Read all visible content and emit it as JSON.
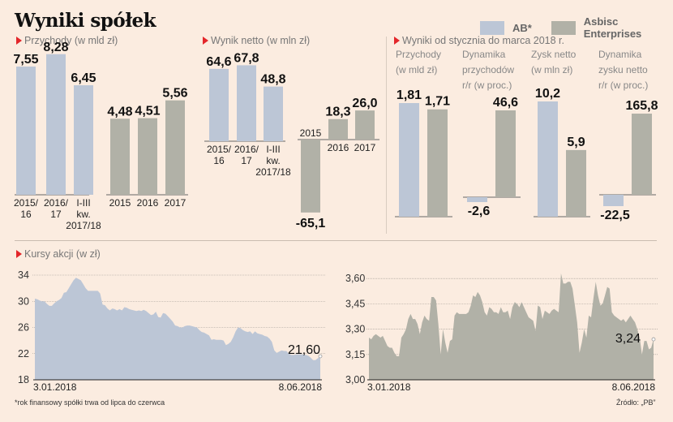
{
  "title": "Wyniki spółek",
  "legend": [
    {
      "label": "AB*",
      "color": "#bcc6d6"
    },
    {
      "label": "Asbisc Enterprises",
      "color": "#b1b1a7"
    }
  ],
  "colors": {
    "ab": "#bcc6d6",
    "asbisc": "#b1b1a7",
    "background": "#fbece0",
    "accent": "#e3262a"
  },
  "sections": {
    "revenue": "Przychody (w mld zł)",
    "net": "Wynik netto (w mln zł)",
    "q1": "Wyniki od stycznia do marca 2018 r.",
    "shares": "Kursy akcji (w zł)"
  },
  "q1_subtitles": [
    [
      "Przychody",
      "(w mld zł)"
    ],
    [
      "Dynamika",
      "przychodów",
      "r/r (w proc.)"
    ],
    [
      "Zysk netto",
      "(w mln zł)"
    ],
    [
      "Dynamika",
      "zysku netto",
      "r/r (w proc.)"
    ]
  ],
  "footnote": "*rok finansowy spółki trwa od lipca do czerwca",
  "source": "Źródło: „PB”",
  "chart_data": [
    {
      "id": "revenue",
      "type": "bar",
      "title": "Przychody (w mld zł)",
      "series": [
        {
          "name": "AB*",
          "categories": [
            "2015/\n16",
            "2016/\n17",
            "I-III\nkw.\n2017/18"
          ],
          "values": [
            7.55,
            8.28,
            6.45
          ],
          "labels": [
            "7,55",
            "8,28",
            "6,45"
          ]
        },
        {
          "name": "Asbisc Enterprises",
          "categories": [
            "2015",
            "2016",
            "2017"
          ],
          "values": [
            4.48,
            4.51,
            5.56
          ],
          "labels": [
            "4,48",
            "4,51",
            "5,56"
          ]
        }
      ]
    },
    {
      "id": "net",
      "type": "bar",
      "title": "Wynik netto (w mln zł)",
      "series": [
        {
          "name": "AB*",
          "categories": [
            "2015/\n16",
            "2016/\n17",
            "I-III\nkw.\n2017/18"
          ],
          "values": [
            64.6,
            67.8,
            48.8
          ],
          "labels": [
            "64,6",
            "67,8",
            "48,8"
          ]
        },
        {
          "name": "Asbisc Enterprises",
          "categories": [
            "2015",
            "2016",
            "2017"
          ],
          "values": [
            -65.1,
            18.3,
            26.0
          ],
          "labels": [
            "-65,1",
            "18,3",
            "26,0"
          ]
        }
      ]
    },
    {
      "id": "q1",
      "type": "bar",
      "title": "Wyniki od stycznia do marca 2018 r.",
      "categories": [
        "Przychody (w mld zł)",
        "Dynamika przychodów r/r (w proc.)",
        "Zysk netto (w mln zł)",
        "Dynamika zysku netto r/r (w proc.)"
      ],
      "series": [
        {
          "name": "AB*",
          "values": [
            1.81,
            -2.6,
            10.2,
            -22.5
          ],
          "labels": [
            "1,81",
            "-2,6",
            "10,2",
            "-22,5"
          ]
        },
        {
          "name": "Asbisc Enterprises",
          "values": [
            1.71,
            46.6,
            5.9,
            165.8
          ],
          "labels": [
            "1,71",
            "46,6",
            "5,9",
            "165,8"
          ]
        }
      ]
    },
    {
      "id": "ab-shares",
      "type": "area",
      "title": "Kursy akcji (w zł)",
      "series_name": "AB*",
      "x_start": "3.01.2018",
      "x_end": "8.06.2018",
      "yticks": [
        34,
        30,
        26,
        22,
        18
      ],
      "ytick_labels": [
        "34",
        "30",
        "26",
        "22",
        "18"
      ],
      "ylim": [
        18,
        34
      ],
      "grid": true,
      "last_label": "21,60",
      "values": [
        30.4,
        30.3,
        30.1,
        30.0,
        30.0,
        29.6,
        29.3,
        29.3,
        29.7,
        30.0,
        30.2,
        30.5,
        31.3,
        31.4,
        32.0,
        32.6,
        33.2,
        33.6,
        33.4,
        33.2,
        32.6,
        32.0,
        31.6,
        31.6,
        31.6,
        31.6,
        31.6,
        31.2,
        29.5,
        29.4,
        28.9,
        28.6,
        28.9,
        28.8,
        28.6,
        28.8,
        28.6,
        29.1,
        29.0,
        28.8,
        28.7,
        28.6,
        28.5,
        28.6,
        28.5,
        28.7,
        28.5,
        28.2,
        27.9,
        28.0,
        28.4,
        27.6,
        27.5,
        28.2,
        28.1,
        27.7,
        27.3,
        26.9,
        26.3,
        26.2,
        26.0,
        26.0,
        26.2,
        26.3,
        26.3,
        26.2,
        26.1,
        26.0,
        25.6,
        25.3,
        25.2,
        25.0,
        24.8,
        24.1,
        24.2,
        24.1,
        24.1,
        24.1,
        24.0,
        23.3,
        23.5,
        23.8,
        24.5,
        25.4,
        26.0,
        25.9,
        25.6,
        25.4,
        25.3,
        25.4,
        25.0,
        25.4,
        25.1,
        25.0,
        24.9,
        24.7,
        24.6,
        24.3,
        23.8,
        22.5,
        22.1,
        22.3,
        22.5,
        22.4,
        22.4,
        22.0,
        21.8,
        21.8,
        21.9,
        21.9,
        21.9,
        21.9,
        21.8,
        21.7,
        21.4,
        21.0,
        21.0,
        21.3,
        21.6
      ],
      "color": "#bcc6d6"
    },
    {
      "id": "asbisc-shares",
      "type": "area",
      "series_name": "Asbisc Enterprises",
      "x_start": "3.01.2018",
      "x_end": "8.06.2018",
      "yticks": [
        3.6,
        3.45,
        3.3,
        3.15,
        3.0
      ],
      "ytick_labels": [
        "3,60",
        "3,45",
        "3,30",
        "3,15",
        "3,00"
      ],
      "ylim": [
        3.0,
        3.62
      ],
      "grid": true,
      "last_label": "3,24",
      "values": [
        3.25,
        3.24,
        3.26,
        3.27,
        3.26,
        3.25,
        3.26,
        3.23,
        3.2,
        3.19,
        3.19,
        3.16,
        3.14,
        3.14,
        3.25,
        3.27,
        3.3,
        3.36,
        3.39,
        3.36,
        3.36,
        3.33,
        3.27,
        3.34,
        3.38,
        3.36,
        3.35,
        3.49,
        3.49,
        3.47,
        3.33,
        3.15,
        3.3,
        3.22,
        3.16,
        3.23,
        3.24,
        3.38,
        3.4,
        3.39,
        3.39,
        3.39,
        3.39,
        3.4,
        3.44,
        3.5,
        3.49,
        3.52,
        3.5,
        3.46,
        3.4,
        3.38,
        3.43,
        3.42,
        3.4,
        3.4,
        3.39,
        3.43,
        3.4,
        3.4,
        3.41,
        3.36,
        3.43,
        3.46,
        3.45,
        3.43,
        3.46,
        3.43,
        3.4,
        3.37,
        3.36,
        3.35,
        3.29,
        3.44,
        3.43,
        3.36,
        3.41,
        3.4,
        3.39,
        3.41,
        3.42,
        3.41,
        3.4,
        3.63,
        3.57,
        3.57,
        3.58,
        3.58,
        3.54,
        3.44,
        3.34,
        3.16,
        3.22,
        3.3,
        3.25,
        3.38,
        3.37,
        3.48,
        3.58,
        3.5,
        3.44,
        3.45,
        3.5,
        3.55,
        3.54,
        3.4,
        3.38,
        3.37,
        3.36,
        3.35,
        3.36,
        3.34,
        3.36,
        3.38,
        3.36,
        3.34,
        3.3,
        3.25,
        3.15,
        3.23,
        3.23,
        3.18,
        3.19,
        3.24
      ],
      "color": "#b1b1a7"
    }
  ]
}
